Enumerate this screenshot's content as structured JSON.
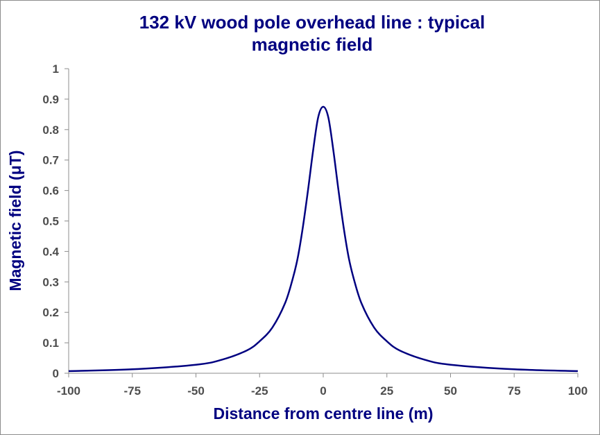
{
  "chart_data": {
    "type": "line",
    "title_lines": [
      "132 kV wood pole overhead line : typical",
      "magnetic field"
    ],
    "xlabel": "Distance from centre line (m)",
    "ylabel": "Magnetic field (μT)",
    "xlim": [
      -100,
      100
    ],
    "ylim": [
      0,
      1
    ],
    "xticks": [
      "-100",
      "-75",
      "-50",
      "-25",
      "0",
      "25",
      "50",
      "75",
      "100"
    ],
    "yticks": [
      "0",
      "0.1",
      "0.2",
      "0.3",
      "0.4",
      "0.5",
      "0.6",
      "0.7",
      "0.8",
      "0.9",
      "1"
    ],
    "grid": false,
    "legend": "none",
    "line_color": "#000080",
    "series": [
      {
        "x": [
          -100,
          -75,
          -50,
          -40,
          -30,
          -25,
          -20,
          -15,
          -12,
          -10,
          -8,
          -6,
          -4,
          -2,
          0,
          2,
          4,
          6,
          8,
          10,
          12,
          15,
          20,
          25,
          30,
          40,
          50,
          75,
          100
        ],
        "values": [
          0.007,
          0.013,
          0.028,
          0.044,
          0.075,
          0.105,
          0.15,
          0.23,
          0.31,
          0.38,
          0.48,
          0.6,
          0.73,
          0.84,
          0.875,
          0.84,
          0.73,
          0.6,
          0.48,
          0.38,
          0.31,
          0.23,
          0.15,
          0.105,
          0.075,
          0.044,
          0.028,
          0.013,
          0.007
        ]
      }
    ]
  }
}
